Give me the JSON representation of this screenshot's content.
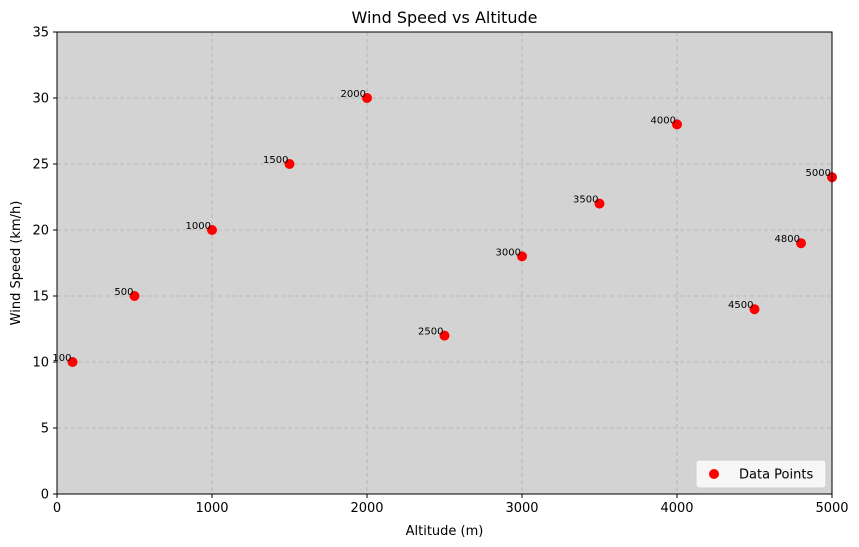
{
  "chart_data": {
    "type": "scatter",
    "title": "Wind Speed vs Altitude",
    "xlabel": "Altitude (m)",
    "ylabel": "Wind Speed (km/h)",
    "xlim": [
      0,
      5000
    ],
    "ylim": [
      0,
      35
    ],
    "xticks": [
      0,
      1000,
      2000,
      3000,
      4000,
      5000
    ],
    "yticks": [
      0,
      5,
      10,
      15,
      20,
      25,
      30,
      35
    ],
    "grid": true,
    "legend": "lower-right",
    "series": [
      {
        "name": "Data Points",
        "color": "#ff0000",
        "x": [
          100,
          500,
          1000,
          1500,
          2000,
          2500,
          3000,
          3500,
          4000,
          4500,
          4800,
          5000
        ],
        "y": [
          10,
          15,
          20,
          25,
          30,
          12,
          18,
          22,
          28,
          14,
          19,
          24
        ],
        "labels": [
          "100",
          "500",
          "1000",
          "1500",
          "2000",
          "2500",
          "3000",
          "3500",
          "4000",
          "4500",
          "4800",
          "5000"
        ]
      }
    ],
    "colors": {
      "plot_background": "#d3d3d3",
      "grid": "#b0b0b0"
    }
  }
}
